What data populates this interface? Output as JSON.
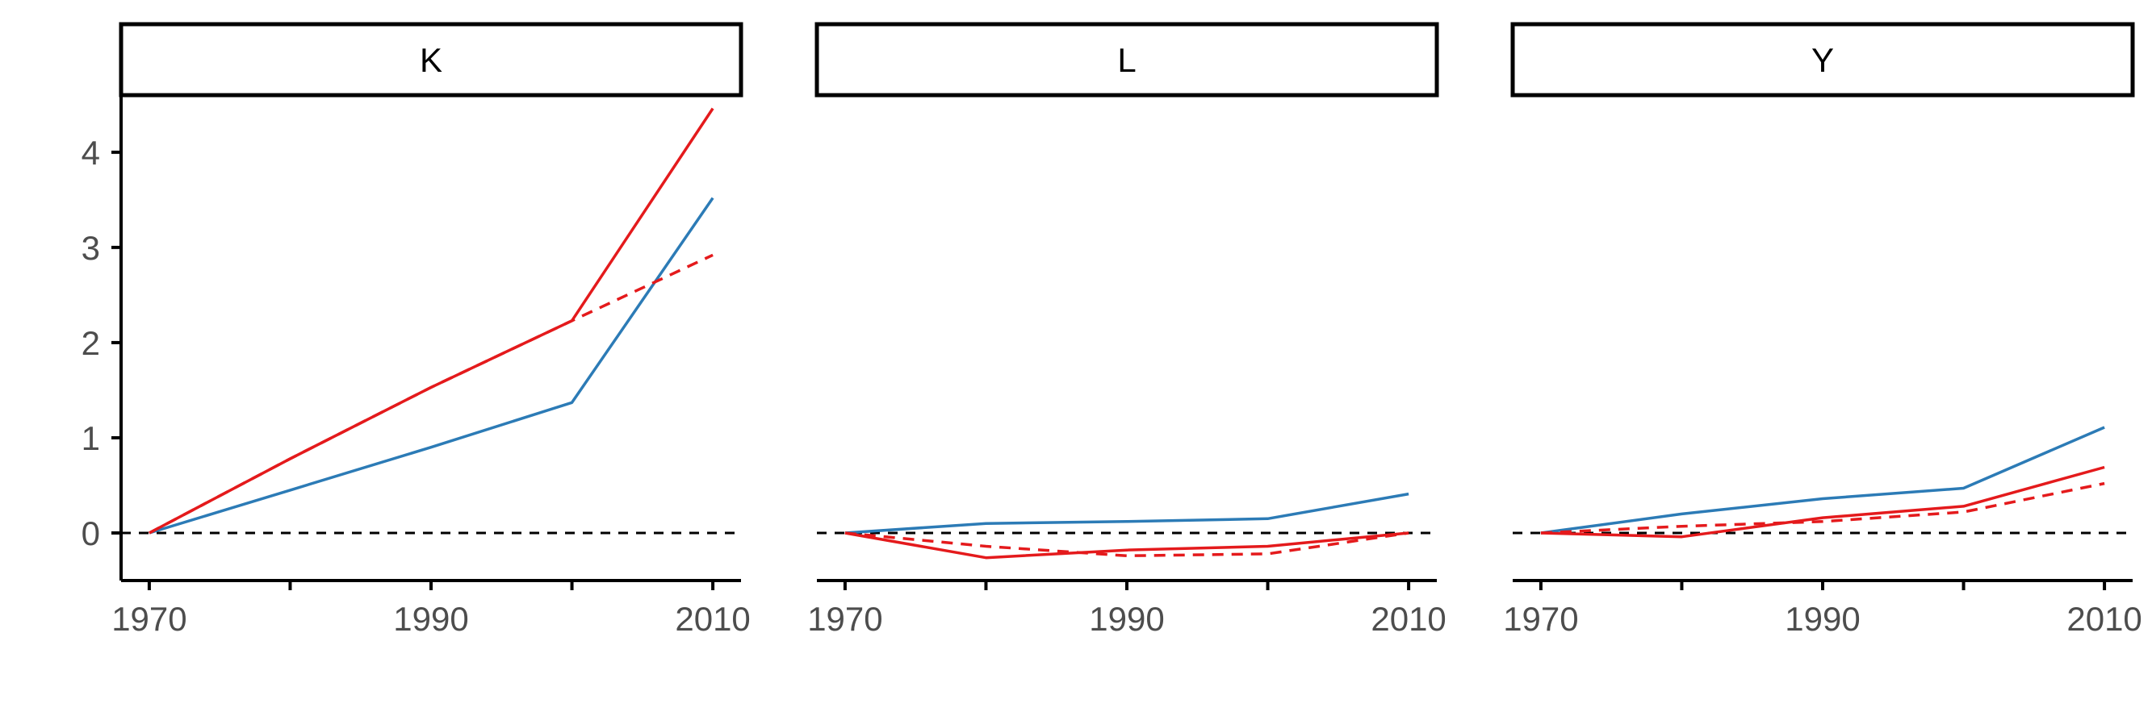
{
  "chart_data": {
    "type": "line",
    "facets": [
      "K",
      "L",
      "Y"
    ],
    "x": [
      1970,
      1980,
      1990,
      2000,
      2010
    ],
    "x_ticks": [
      1970,
      1980,
      1990,
      2000,
      2010
    ],
    "x_tick_labels": [
      "1970",
      "",
      "1990",
      "",
      "2010"
    ],
    "xlim": [
      1968,
      2012
    ],
    "y_ticks": [
      0,
      1,
      2,
      3,
      4
    ],
    "y_tick_labels": [
      "0",
      "1",
      "2",
      "3",
      "4"
    ],
    "ylim": [
      -0.5,
      4.6
    ],
    "title": "",
    "xlabel": "",
    "ylabel": "",
    "reference_line": {
      "y": 0,
      "style": "dashed",
      "color": "#000000"
    },
    "legend": "none",
    "grid": false,
    "panels": [
      {
        "facet": "K",
        "series": [
          {
            "color": "#2c7bb6",
            "style": "solid",
            "values": [
              0,
              0.45,
              0.9,
              1.37,
              3.52
            ]
          },
          {
            "color": "#e41a1c",
            "style": "solid",
            "values": [
              0,
              0.78,
              1.53,
              2.23,
              4.46
            ]
          },
          {
            "color": "#e41a1c",
            "style": "dashed",
            "values": [
              0,
              0.78,
              1.53,
              2.23,
              2.92
            ]
          }
        ]
      },
      {
        "facet": "L",
        "series": [
          {
            "color": "#2c7bb6",
            "style": "solid",
            "values": [
              0,
              0.1,
              0.12,
              0.15,
              0.41
            ]
          },
          {
            "color": "#e41a1c",
            "style": "solid",
            "values": [
              0,
              -0.26,
              -0.18,
              -0.14,
              0.0
            ]
          },
          {
            "color": "#e41a1c",
            "style": "dashed",
            "values": [
              0,
              -0.14,
              -0.24,
              -0.22,
              0.0
            ]
          }
        ]
      },
      {
        "facet": "Y",
        "series": [
          {
            "color": "#2c7bb6",
            "style": "solid",
            "values": [
              0,
              0.2,
              0.36,
              0.47,
              1.11
            ]
          },
          {
            "color": "#e41a1c",
            "style": "solid",
            "values": [
              0,
              -0.04,
              0.16,
              0.28,
              0.69
            ]
          },
          {
            "color": "#e41a1c",
            "style": "dashed",
            "values": [
              0,
              0.07,
              0.12,
              0.22,
              0.52
            ]
          }
        ]
      }
    ]
  }
}
